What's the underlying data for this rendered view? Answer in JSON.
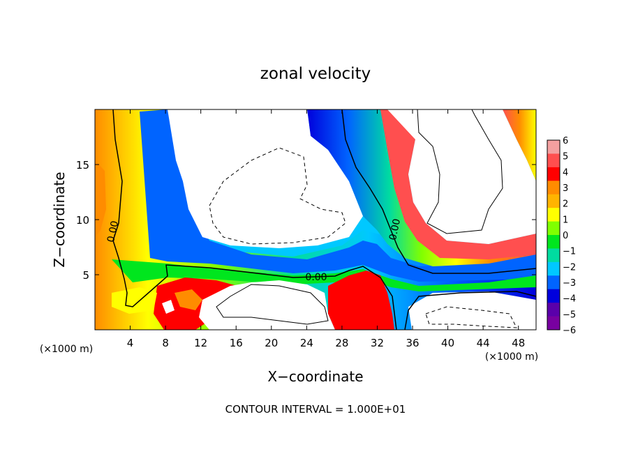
{
  "chart_data": {
    "type": "heatmap",
    "title": "zonal velocity",
    "xlabel": "X−coordinate",
    "ylabel": "Z−coordinate",
    "x_unit_label": "(×1000 m)",
    "y_unit_label": "(×1000 m)",
    "footer": "CONTOUR INTERVAL = 1.000E+01",
    "xlim": [
      0,
      50
    ],
    "ylim": [
      0,
      20
    ],
    "x_ticks": [
      4,
      8,
      12,
      16,
      20,
      24,
      28,
      32,
      36,
      40,
      44,
      48
    ],
    "y_ticks": [
      5,
      10,
      15
    ],
    "colorbar": {
      "levels": [
        6,
        5,
        4,
        3,
        2,
        1,
        0,
        -1,
        -2,
        -3,
        -4,
        -5,
        -6
      ],
      "labels": [
        "6",
        "5",
        "4",
        "3",
        "2",
        "1",
        "0",
        "−1",
        "−2",
        "−3",
        "−4",
        "−5",
        "−6"
      ],
      "colors": [
        "#f4a0a0",
        "#ff4f4f",
        "#ff0000",
        "#ff8c00",
        "#ffb400",
        "#ffff00",
        "#80ff00",
        "#00e61e",
        "#00dca0",
        "#00c8ff",
        "#0064ff",
        "#0000dc",
        "#5a00aa",
        "#7800a0"
      ]
    },
    "contour_labels": [
      {
        "text": "0.00",
        "x": 3.0,
        "z": 9.7
      },
      {
        "text": "0.00",
        "x": 25.0,
        "z": 4.8
      },
      {
        "text": "0.00",
        "x": 34.5,
        "z": 9.0
      }
    ]
  }
}
